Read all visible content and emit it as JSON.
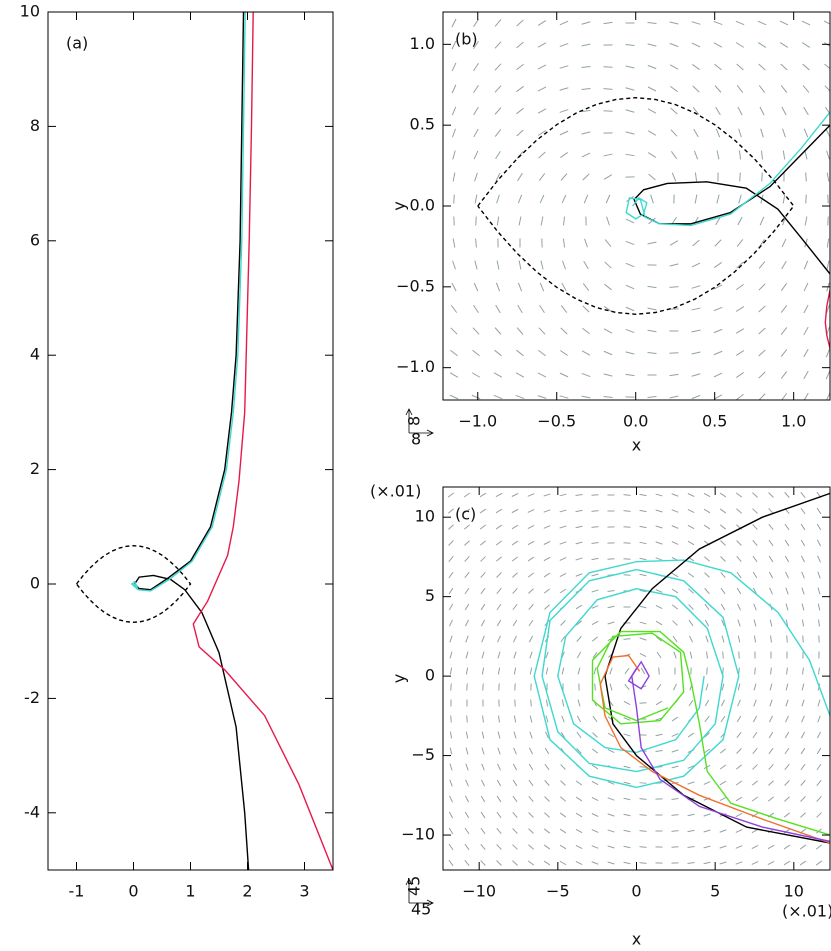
{
  "chart_data": [
    {
      "type": "line",
      "panel_label": "(a)",
      "xlim": [
        -1.5,
        3.5
      ],
      "ylim": [
        -5,
        10
      ],
      "xticks": [
        -1,
        0,
        1,
        2,
        3
      ],
      "yticks": [
        -4,
        -2,
        0,
        2,
        4,
        6,
        8,
        10
      ],
      "series": [
        {
          "color": "#000000",
          "linestyle": "dashed",
          "x": [
            -1,
            -0.875,
            -0.75,
            -0.625,
            -0.5,
            -0.375,
            -0.25,
            -0.125,
            0,
            0.125,
            0.25,
            0.375,
            0.5,
            0.625,
            0.75,
            0.875,
            1,
            0.875,
            0.75,
            0.625,
            0.5,
            0.375,
            0.25,
            0.125,
            0,
            -0.125,
            -0.25,
            -0.375,
            -0.5,
            -0.625,
            -0.75,
            -0.875,
            -1
          ],
          "values": [
            0,
            0.157,
            0.293,
            0.409,
            0.503,
            0.576,
            0.628,
            0.659,
            0.67,
            0.659,
            0.628,
            0.576,
            0.503,
            0.409,
            0.293,
            0.157,
            0,
            -0.157,
            -0.293,
            -0.409,
            -0.503,
            -0.576,
            -0.628,
            -0.659,
            -0.67,
            -0.659,
            -0.628,
            -0.576,
            -0.503,
            -0.409,
            -0.293,
            -0.157,
            0
          ]
        },
        {
          "color": "#000000",
          "linestyle": "solid",
          "x": [
            1.93,
            1.9,
            1.87,
            1.8,
            1.72,
            1.6,
            1.35,
            1.0,
            0.6,
            0.3,
            0.1,
            0.02,
            0.1,
            0.35,
            0.65,
            0.9,
            1.2,
            1.5,
            1.8,
            1.95,
            2.02
          ],
          "values": [
            10,
            8,
            6,
            4,
            3,
            2,
            1,
            0.4,
            0.1,
            -0.1,
            -0.08,
            0,
            0.12,
            0.15,
            0.08,
            -0.1,
            -0.5,
            -1.2,
            -2.5,
            -4,
            -5
          ]
        },
        {
          "color": "#3fd8d0",
          "linestyle": "solid",
          "x": [
            1.96,
            1.93,
            1.9,
            1.83,
            1.75,
            1.63,
            1.38,
            1.03,
            0.63,
            0.3,
            0.08,
            -0.03,
            0.02,
            0.06,
            0.0
          ],
          "values": [
            10,
            8,
            6,
            4,
            3,
            2,
            1,
            0.4,
            0.08,
            -0.12,
            -0.1,
            0,
            0.04,
            -0.04,
            0.0
          ]
        },
        {
          "color": "#e8194a",
          "linestyle": "solid",
          "x": [
            2.1,
            2.07,
            2.03,
            1.95,
            1.85,
            1.75,
            1.65,
            1.3,
            1.05,
            1.15,
            1.6,
            2.3,
            2.9,
            3.5
          ],
          "values": [
            10,
            8,
            6,
            3,
            1.8,
            1,
            0.5,
            -0.3,
            -0.7,
            -1.1,
            -1.5,
            -2.3,
            -3.5,
            -5
          ]
        }
      ]
    },
    {
      "type": "line",
      "panel_label": "(b)",
      "xlabel": "x",
      "ylabel": "y",
      "vector_scale": [
        8,
        8
      ],
      "xlim": [
        -1.22,
        1.23
      ],
      "ylim": [
        -1.2,
        1.2
      ],
      "xticks": [
        {
          "value": -1,
          "label": "−1.0"
        },
        {
          "value": -0.5,
          "label": "−0.5"
        },
        {
          "value": 0,
          "label": "0.0"
        },
        {
          "value": 0.5,
          "label": "0.5"
        },
        {
          "value": 1,
          "label": "1.0"
        }
      ],
      "yticks": [
        {
          "value": -1,
          "label": "−1.0"
        },
        {
          "value": -0.5,
          "label": "−0.5"
        },
        {
          "value": 0,
          "label": "0.0"
        },
        {
          "value": 0.5,
          "label": "0.5"
        },
        {
          "value": 1,
          "label": "1.0"
        }
      ],
      "series": [
        {
          "color": "#000000",
          "linestyle": "dashed",
          "x": [
            -1,
            -0.875,
            -0.75,
            -0.625,
            -0.5,
            -0.375,
            -0.25,
            -0.125,
            0,
            0.125,
            0.25,
            0.375,
            0.5,
            0.625,
            0.75,
            0.875,
            1,
            0.875,
            0.75,
            0.625,
            0.5,
            0.375,
            0.25,
            0.125,
            0,
            -0.125,
            -0.25,
            -0.375,
            -0.5,
            -0.625,
            -0.75,
            -0.875,
            -1
          ],
          "values": [
            0,
            0.157,
            0.293,
            0.409,
            0.503,
            0.576,
            0.628,
            0.659,
            0.67,
            0.659,
            0.628,
            0.576,
            0.503,
            0.409,
            0.293,
            0.157,
            0,
            -0.157,
            -0.293,
            -0.409,
            -0.503,
            -0.576,
            -0.628,
            -0.659,
            -0.67,
            -0.659,
            -0.628,
            -0.576,
            -0.503,
            -0.409,
            -0.293,
            -0.157,
            0
          ]
        },
        {
          "color": "#000000",
          "linestyle": "solid",
          "x": [
            1.23,
            1.05,
            0.85,
            0.6,
            0.35,
            0.15,
            0.03,
            -0.01,
            0.05,
            0.2,
            0.45,
            0.7,
            0.9,
            1.05,
            1.23
          ],
          "values": [
            0.5,
            0.32,
            0.12,
            -0.04,
            -0.11,
            -0.11,
            -0.05,
            0.04,
            0.1,
            0.14,
            0.15,
            0.11,
            -0.02,
            -0.2,
            -0.42
          ]
        },
        {
          "color": "#3fd8d0",
          "linestyle": "solid",
          "x": [
            1.23,
            1.05,
            0.85,
            0.6,
            0.35,
            0.15,
            0.06,
            0.03,
            -0.04,
            -0.06,
            0.0,
            0.05,
            0.07,
            0.02,
            -0.02
          ],
          "values": [
            0.58,
            0.36,
            0.14,
            -0.05,
            -0.12,
            -0.11,
            -0.07,
            0.04,
            0.05,
            -0.04,
            -0.08,
            -0.05,
            0.02,
            0.05,
            0.0
          ]
        },
        {
          "color": "#e8194a",
          "linestyle": "solid",
          "x": [
            1.23,
            1.21,
            1.2,
            1.21,
            1.23
          ],
          "values": [
            -0.52,
            -0.62,
            -0.72,
            -0.8,
            -0.88
          ]
        }
      ]
    },
    {
      "type": "line",
      "panel_label": "(c)",
      "xlabel": "x",
      "ylabel": "y",
      "x_unit": "(×.01)",
      "y_unit": "(×.01)",
      "vector_scale": [
        45,
        45
      ],
      "xlim": [
        -12.3,
        12.3
      ],
      "ylim": [
        -12.2,
        11.9
      ],
      "xticks": [
        {
          "value": -10,
          "label": "−10"
        },
        {
          "value": -5,
          "label": "−5"
        },
        0,
        5,
        10
      ],
      "yticks": [
        {
          "value": -10,
          "label": "−10"
        },
        {
          "value": -5,
          "label": "−5"
        },
        0,
        5,
        10
      ],
      "series": [
        {
          "color": "#3fd8d0",
          "linestyle": "solid",
          "x": [
            12.3,
            11,
            9,
            6,
            3,
            0,
            -3,
            -5.5,
            -6.5,
            -5.5,
            -3,
            0,
            3,
            5.5,
            6.5,
            5.5,
            3,
            0,
            -3,
            -5.5,
            -6,
            -5,
            -3,
            0,
            3,
            5,
            5.5,
            4.5,
            2.5,
            0,
            -2.5,
            -4.5,
            -5,
            -4,
            -2,
            0,
            2.5,
            4,
            4.3
          ],
          "values": [
            -2.5,
            1,
            4,
            6.5,
            7.3,
            7.2,
            6.5,
            4,
            0,
            -4,
            -6.3,
            -7,
            -6.3,
            -4,
            0,
            3.7,
            6,
            6.7,
            6,
            3.5,
            0,
            -3.5,
            -5.5,
            -6,
            -5.3,
            -3,
            0,
            3,
            5,
            5.5,
            4.8,
            2.5,
            0,
            -3,
            -4.5,
            -4.8,
            -4,
            -2,
            0
          ]
        },
        {
          "color": "#000000",
          "linestyle": "solid",
          "x": [
            12.3,
            8,
            4,
            1,
            -1,
            -2,
            -1.5,
            0,
            3,
            7,
            12.3
          ],
          "values": [
            11.5,
            10,
            8,
            5.5,
            3,
            0,
            -3,
            -5,
            -7.5,
            -9.5,
            -10.5
          ]
        },
        {
          "color": "#55e020",
          "linestyle": "solid",
          "x": [
            12.3,
            9,
            6,
            4.5,
            4,
            3.5,
            3,
            1.5,
            -1,
            -2.8,
            -2.8,
            -1,
            1.5,
            3,
            2.8,
            1,
            -1.5,
            -2.5,
            -2,
            0,
            2
          ],
          "values": [
            -10,
            -9,
            -8,
            -6,
            -3,
            -0.5,
            1.5,
            2.8,
            2.8,
            1,
            -1.5,
            -3,
            -2.8,
            -1,
            1.5,
            2.7,
            2.5,
            0.5,
            -2,
            -2.8,
            -2
          ]
        },
        {
          "color": "#f07030",
          "linestyle": "solid",
          "x": [
            12.3,
            8,
            4,
            1,
            -1,
            -2,
            -2.3,
            -1.5,
            -0.5,
            0.2
          ],
          "values": [
            -10.5,
            -9,
            -7.5,
            -6,
            -4.5,
            -2.5,
            -0.5,
            1.2,
            1.3,
            0.3
          ]
        },
        {
          "color": "#9040e0",
          "linestyle": "solid",
          "x": [
            12.3,
            8,
            4,
            1.5,
            0.3,
            0,
            -0.3,
            0.3,
            0.8,
            0.3,
            -0.5,
            0
          ],
          "values": [
            -10.4,
            -9.5,
            -8.2,
            -6.5,
            -4.5,
            -2,
            0,
            0.9,
            0,
            -0.8,
            -0.3,
            0.5
          ]
        }
      ]
    }
  ]
}
